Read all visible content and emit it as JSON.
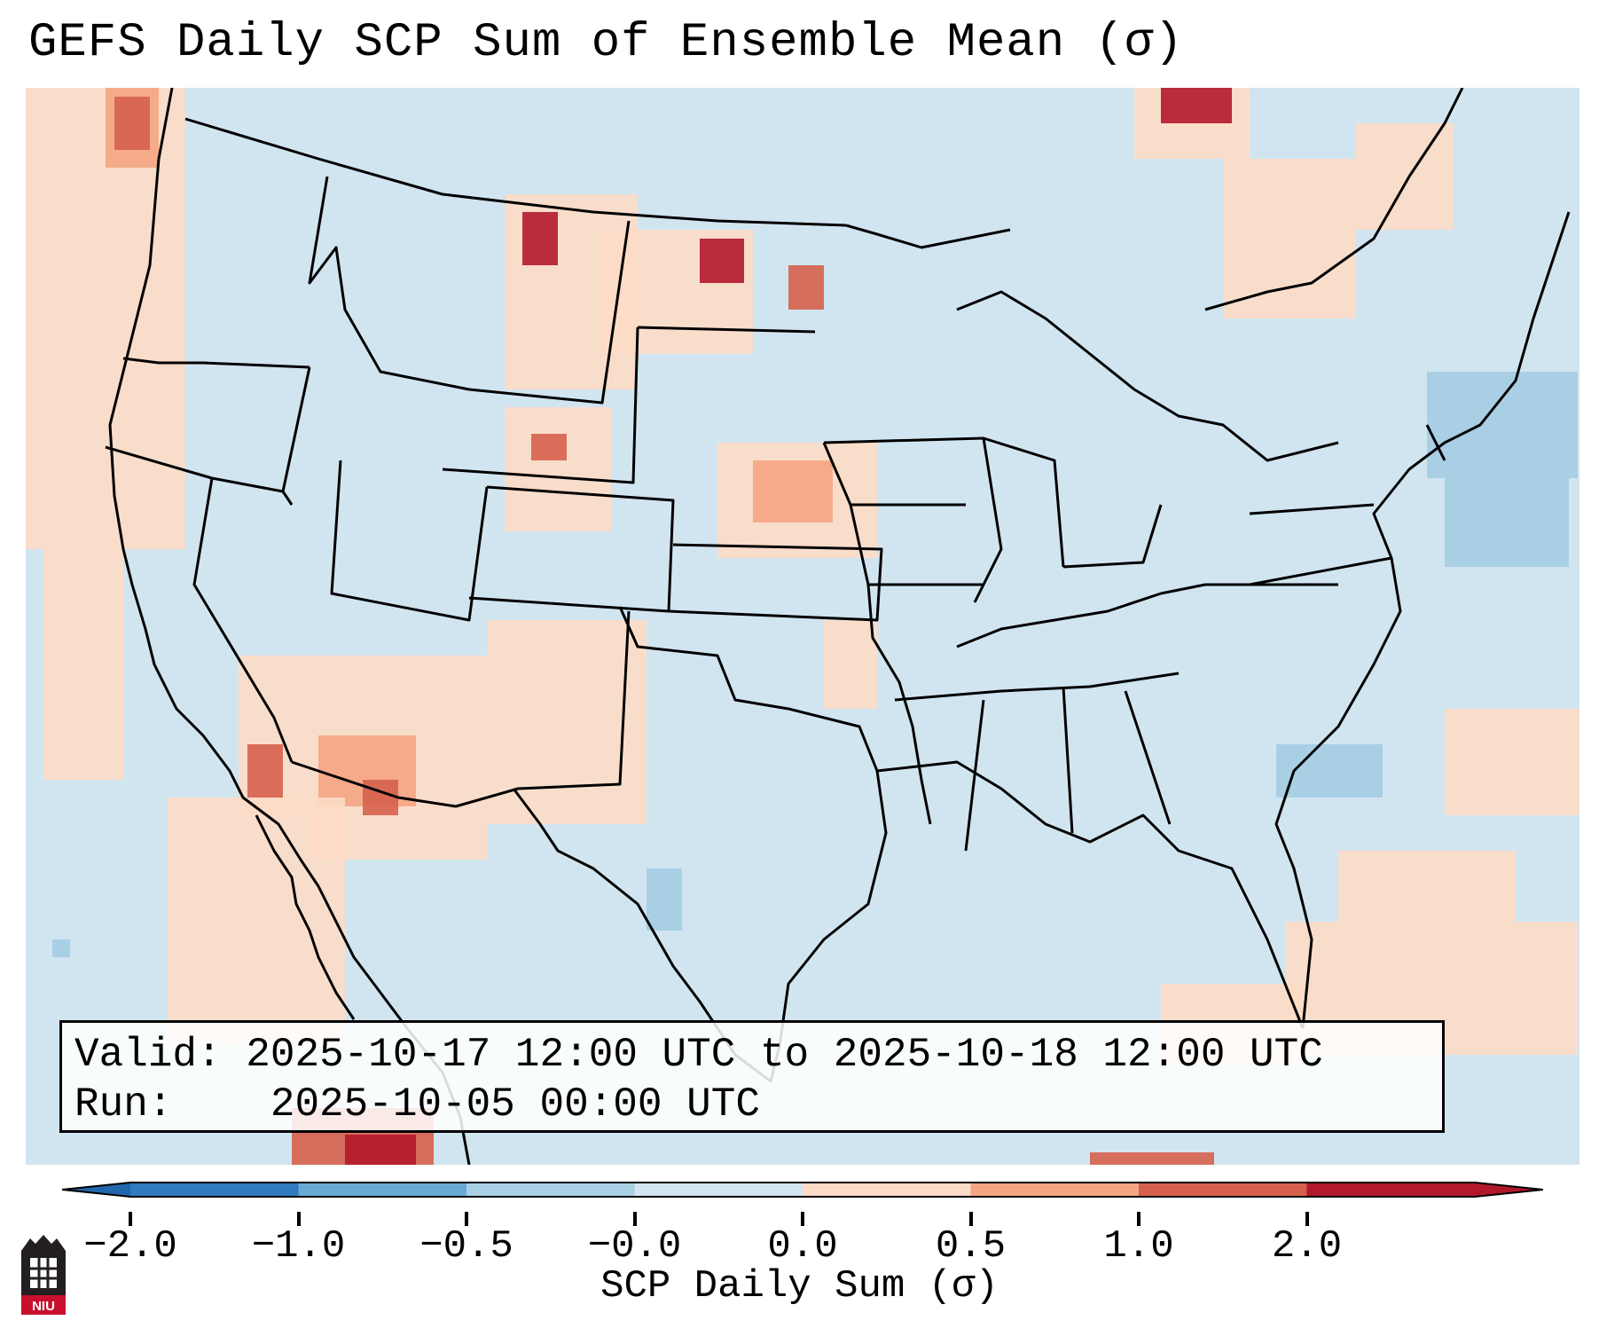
{
  "title": "GEFS Daily SCP Sum of Ensemble Mean (σ)",
  "info": {
    "valid_label": "Valid:",
    "valid_text": "2025-10-17 12:00 UTC to 2025-10-18 12:00 UTC",
    "run_label": "Run:",
    "run_text": "2025-10-05 00:00 UTC"
  },
  "colorbar": {
    "label": "SCP Daily Sum (σ)",
    "ticks": [
      "−2.0",
      "−1.0",
      "−0.5",
      "−0.0",
      "0.0",
      "0.5",
      "1.0",
      "2.0"
    ],
    "colors": [
      "#2f7bbd",
      "#6aa9d4",
      "#a9cfe5",
      "#d1e5f0",
      "#fddbc7",
      "#f4a582",
      "#d6604d",
      "#b2182b"
    ],
    "under_color": "#2166ac",
    "over_color": "#b2182b"
  },
  "map": {
    "ocean_color": "#d1e5f0",
    "boundary_color": "#000000"
  },
  "logo": {
    "text": "NIU",
    "color": "#c8102e"
  },
  "icons": [
    "niu-logo-icon"
  ]
}
